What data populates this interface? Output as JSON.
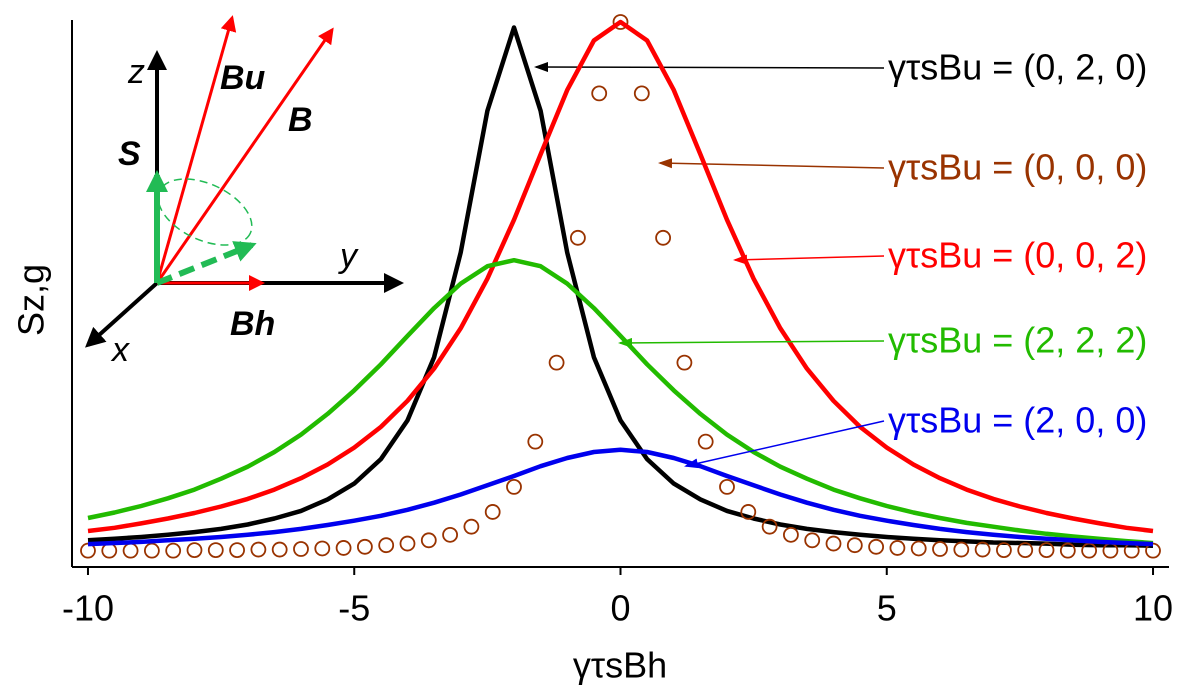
{
  "chart_data": {
    "type": "line",
    "xlabel": "γτsBh",
    "ylabel": "Sz,g",
    "xlim": [
      -10.3,
      10.3
    ],
    "ylim": [
      0,
      1
    ],
    "xticks": [
      -10,
      -5,
      0,
      5,
      10
    ],
    "x": [
      -10,
      -9.5,
      -9,
      -8.5,
      -8,
      -7.5,
      -7,
      -6.5,
      -6,
      -5.5,
      -5,
      -4.5,
      -4,
      -3.5,
      -3,
      -2.5,
      -2,
      -1.5,
      -1,
      -0.5,
      0,
      0.5,
      1,
      1.5,
      2,
      2.5,
      3,
      3.5,
      4,
      4.5,
      5,
      5.5,
      6,
      6.5,
      7,
      7.5,
      8,
      8.5,
      9,
      9.5,
      10
    ],
    "series": [
      {
        "name": "γτsBu = (0, 2, 0)",
        "color": "#000000",
        "values": [
          0.049,
          0.052,
          0.055,
          0.059,
          0.064,
          0.07,
          0.078,
          0.089,
          0.103,
          0.124,
          0.153,
          0.198,
          0.269,
          0.385,
          0.577,
          0.837,
          0.99,
          0.837,
          0.577,
          0.385,
          0.269,
          0.198,
          0.153,
          0.124,
          0.103,
          0.089,
          0.078,
          0.07,
          0.064,
          0.059,
          0.055,
          0.052,
          0.049,
          0.047,
          0.045,
          0.044,
          0.043,
          0.041,
          0.04,
          0.04,
          0.039
        ]
      },
      {
        "name": "γτsBu = (0, 0, 0)",
        "color": "#993300",
        "marker": "circle",
        "x": [
          -10,
          -9.6,
          -9.2,
          -8.8,
          -8.4,
          -8,
          -7.6,
          -7.2,
          -6.8,
          -6.4,
          -6,
          -5.6,
          -5.2,
          -4.8,
          -4.4,
          -4,
          -3.6,
          -3.2,
          -2.8,
          -2.4,
          -2,
          -1.6,
          -1.2,
          -0.8,
          -0.4,
          0,
          0.4,
          0.8,
          1.2,
          1.6,
          2,
          2.4,
          2.8,
          3.2,
          3.6,
          4,
          4.4,
          4.8,
          5.2,
          5.6,
          6,
          6.4,
          6.8,
          7.2,
          7.6,
          8,
          8.4,
          8.8,
          9.2,
          9.6,
          10
        ],
        "values": [
          0.03,
          0.03,
          0.03,
          0.03,
          0.03,
          0.031,
          0.031,
          0.031,
          0.032,
          0.032,
          0.033,
          0.034,
          0.035,
          0.037,
          0.04,
          0.043,
          0.049,
          0.059,
          0.074,
          0.101,
          0.147,
          0.23,
          0.375,
          0.604,
          0.869,
          1.0,
          0.869,
          0.604,
          0.375,
          0.23,
          0.147,
          0.101,
          0.074,
          0.059,
          0.049,
          0.043,
          0.04,
          0.037,
          0.035,
          0.034,
          0.033,
          0.032,
          0.032,
          0.031,
          0.031,
          0.031,
          0.03,
          0.03,
          0.03,
          0.03,
          0.03
        ]
      },
      {
        "name": "γτsBu = (0, 0, 2)",
        "color": "#ff0000",
        "values": [
          0.066,
          0.072,
          0.08,
          0.089,
          0.099,
          0.111,
          0.125,
          0.142,
          0.163,
          0.188,
          0.219,
          0.257,
          0.305,
          0.364,
          0.438,
          0.529,
          0.637,
          0.757,
          0.875,
          0.966,
          1.0,
          0.966,
          0.875,
          0.757,
          0.637,
          0.529,
          0.438,
          0.364,
          0.305,
          0.257,
          0.219,
          0.188,
          0.163,
          0.142,
          0.125,
          0.111,
          0.099,
          0.089,
          0.08,
          0.072,
          0.066
        ]
      },
      {
        "name": "γτsBu = (2, 2, 2)",
        "color": "#22bb00",
        "values": [
          0.09,
          0.1,
          0.112,
          0.126,
          0.142,
          0.162,
          0.184,
          0.211,
          0.243,
          0.281,
          0.324,
          0.372,
          0.424,
          0.475,
          0.52,
          0.552,
          0.563,
          0.552,
          0.52,
          0.475,
          0.424,
          0.372,
          0.324,
          0.281,
          0.243,
          0.211,
          0.184,
          0.162,
          0.142,
          0.126,
          0.112,
          0.1,
          0.09,
          0.081,
          0.074,
          0.067,
          0.061,
          0.056,
          0.0515,
          0.0475,
          0.0439
        ]
      },
      {
        "name": "γτsBu = (2, 0, 0)",
        "color": "#0000ee",
        "values": [
          0.042,
          0.044,
          0.046,
          0.049,
          0.052,
          0.055,
          0.059,
          0.064,
          0.07,
          0.077,
          0.085,
          0.094,
          0.105,
          0.118,
          0.133,
          0.15,
          0.167,
          0.185,
          0.2,
          0.211,
          0.215,
          0.211,
          0.2,
          0.185,
          0.167,
          0.15,
          0.133,
          0.118,
          0.105,
          0.094,
          0.085,
          0.077,
          0.07,
          0.064,
          0.059,
          0.055,
          0.052,
          0.049,
          0.046,
          0.044,
          0.042
        ]
      }
    ],
    "inset": {
      "labels": [
        "z",
        "Bu",
        "B",
        "S",
        "y",
        "Bh",
        "x"
      ]
    }
  }
}
